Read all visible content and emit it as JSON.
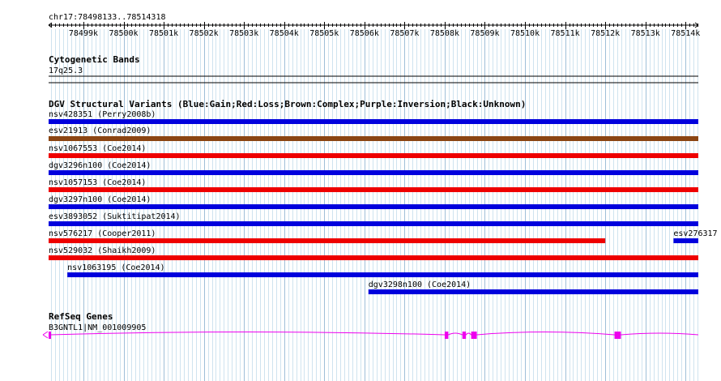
{
  "ruler": {
    "position_label": "chr17:78498133..78514318",
    "start": 78498133,
    "end": 78514318,
    "tick_labels": [
      "78499k",
      "78500k",
      "78501k",
      "78502k",
      "78503k",
      "78504k",
      "78505k",
      "78506k",
      "78507k",
      "78508k",
      "78509k",
      "78510k",
      "78511k",
      "78512k",
      "78513k",
      "78514k"
    ]
  },
  "cytoband": {
    "title": "Cytogenetic Bands",
    "band": "17q25.3"
  },
  "dgv": {
    "title": "DGV Structural Variants (Blue:Gain;Red:Loss;Brown:Complex;Purple:Inversion;Black:Unknown)",
    "colors": {
      "gain": "#0000dd",
      "loss": "#ee0000",
      "complex": "#8b4513"
    },
    "features": [
      {
        "name": "nsv428351 (Perry2008b)",
        "type": "gain",
        "start": 78498133,
        "end": 78514318
      },
      {
        "name": "esv21913 (Conrad2009)",
        "type": "complex",
        "start": 78498133,
        "end": 78514318
      },
      {
        "name": "nsv1067553 (Coe2014)",
        "type": "loss",
        "start": 78498133,
        "end": 78514318
      },
      {
        "name": "dgv3296n100 (Coe2014)",
        "type": "gain",
        "start": 78498133,
        "end": 78514318
      },
      {
        "name": "nsv1057153 (Coe2014)",
        "type": "loss",
        "start": 78498133,
        "end": 78514318
      },
      {
        "name": "dgv3297n100 (Coe2014)",
        "type": "gain",
        "start": 78498133,
        "end": 78514318
      },
      {
        "name": "esv3893052 (Suktitipat2014)",
        "type": "gain",
        "start": 78498133,
        "end": 78514318
      },
      {
        "name": "nsv576217 (Cooper2011)",
        "type": "loss",
        "start": 78498133,
        "end": 78512000
      },
      {
        "name": "esv276317",
        "type": "gain",
        "start": 78513700,
        "end": 78514318
      },
      {
        "name": "nsv529032 (Shaikh2009)",
        "type": "loss",
        "start": 78498133,
        "end": 78514318
      },
      {
        "name": "nsv1063195 (Coe2014)",
        "type": "gain",
        "start": 78498600,
        "end": 78514318
      },
      {
        "name": "dgv3298n100 (Coe2014)",
        "type": "gain",
        "start": 78506100,
        "end": 78514318
      }
    ]
  },
  "refseq": {
    "title": "RefSeq Genes",
    "gene_label": "B3GNTL1|NM_001009905",
    "color": "#ee00ee",
    "start": 78498133,
    "end": 78514318,
    "exons": [
      {
        "start": 78498133,
        "end": 78498170
      },
      {
        "start": 78508000,
        "end": 78508090
      },
      {
        "start": 78508440,
        "end": 78508530
      },
      {
        "start": 78508660,
        "end": 78508800
      },
      {
        "start": 78512230,
        "end": 78512390
      }
    ]
  }
}
